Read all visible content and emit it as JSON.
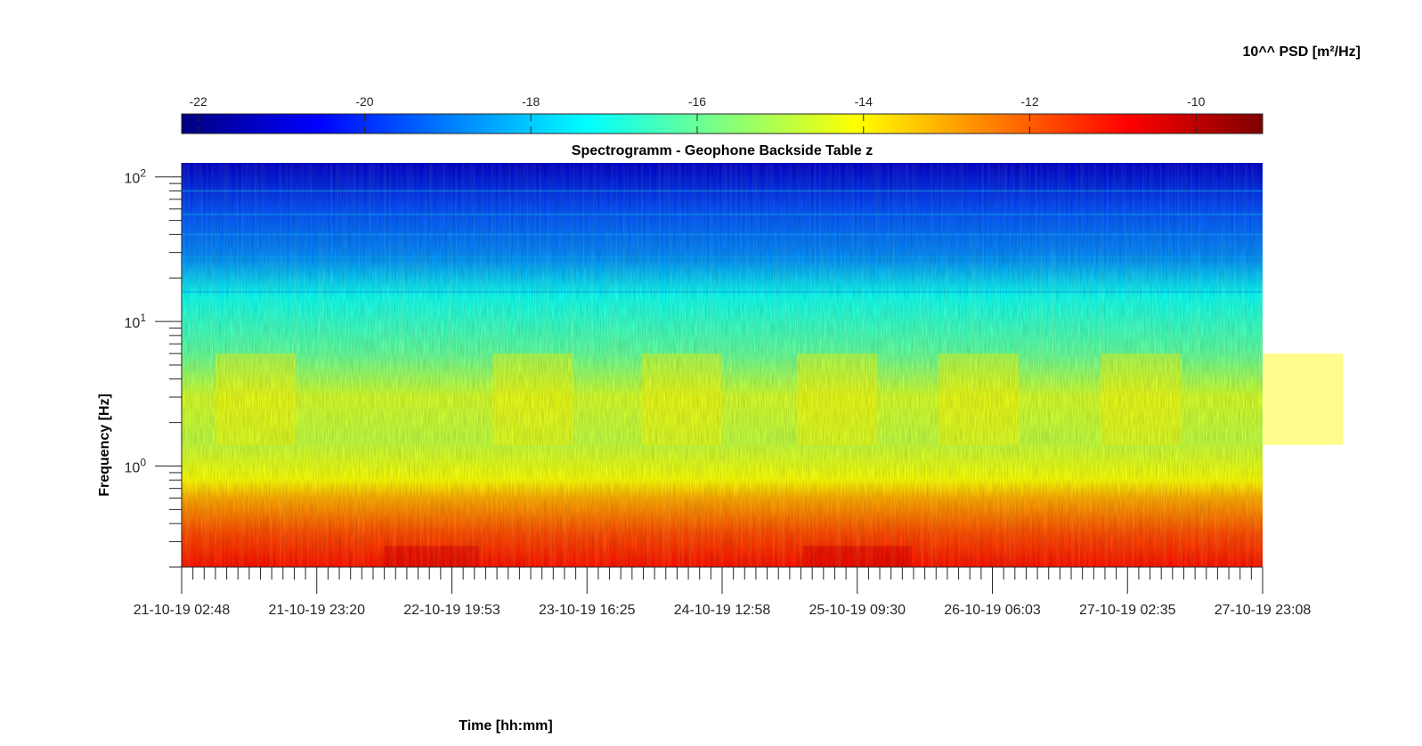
{
  "chart_data": {
    "type": "heatmap",
    "title": "Spectrogramm - Geophone Backside Table z",
    "xlabel": "Time [hh:mm]",
    "ylabel": "Frequency [Hz]",
    "colorbar": {
      "label": "10^^ PSD [m²/Hz]",
      "range": [
        -22.2,
        -9.2
      ],
      "ticks": [
        "-22",
        "-20",
        "-18",
        "-16",
        "-14",
        "-12",
        "-10"
      ],
      "colormap": "jet",
      "placement": "top"
    },
    "x_ticks": [
      "21-10-19 02:48",
      "21-10-19 23:20",
      "22-10-19 19:53",
      "23-10-19 16:25",
      "24-10-19 12:58",
      "25-10-19 09:30",
      "26-10-19 06:03",
      "27-10-19 02:35",
      "27-10-19 23:08"
    ],
    "y_scale": "log",
    "y_range_hz": [
      0.2,
      125
    ],
    "y_ticks": [
      {
        "base": "10",
        "exp": "0"
      },
      {
        "base": "10",
        "exp": "1"
      },
      {
        "base": "10",
        "exp": "2"
      }
    ],
    "psd_profile": [
      {
        "freq_hz": 0.2,
        "log_psd": -11.0
      },
      {
        "freq_hz": 0.35,
        "log_psd": -11.8
      },
      {
        "freq_hz": 0.6,
        "log_psd": -13.0
      },
      {
        "freq_hz": 0.8,
        "log_psd": -14.1
      },
      {
        "freq_hz": 1.5,
        "log_psd": -14.9
      },
      {
        "freq_hz": 3.0,
        "log_psd": -14.6
      },
      {
        "freq_hz": 6.0,
        "log_psd": -16.1
      },
      {
        "freq_hz": 15,
        "log_psd": -17.2
      },
      {
        "freq_hz": 28,
        "log_psd": -18.8
      },
      {
        "freq_hz": 60,
        "log_psd": -19.6
      },
      {
        "freq_hz": 125,
        "log_psd": -21.2
      }
    ],
    "active_periods_note": "",
    "grid": false
  }
}
